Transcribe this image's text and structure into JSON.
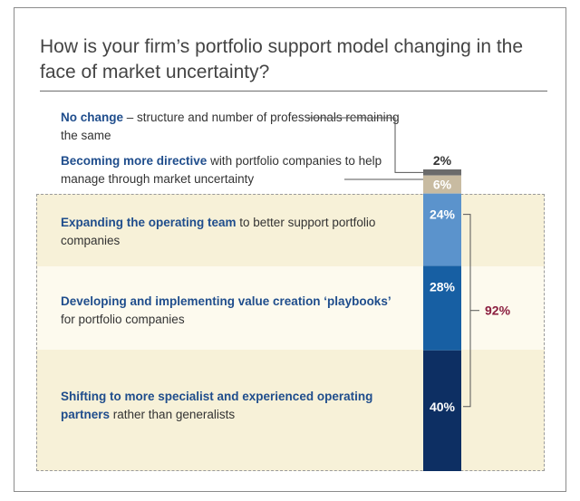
{
  "title": "How is your firm’s portfolio support model changing in the face of market uncertainty?",
  "chart_data": {
    "type": "bar",
    "subtype": "stacked-100",
    "categories": [
      "No change – structure and number of professionals remaining the same",
      "Becoming more directive with portfolio companies to help manage through market uncertainty",
      "Expanding the operating team to better support portfolio companies",
      "Developing and implementing value creation ‘playbooks’ for portfolio companies",
      "Shifting to more specialist and experienced operating partners rather than generalists"
    ],
    "values": [
      2,
      6,
      24,
      28,
      40
    ],
    "value_labels": [
      "2%",
      "6%",
      "24%",
      "28%",
      "40%"
    ],
    "colors": [
      "#6b6b6b",
      "#c8bba1",
      "#5b93cc",
      "#175fa3",
      "#0d2f63"
    ],
    "bracket_label": "92%",
    "bracket_color": "#8b1e3f"
  },
  "labels": [
    {
      "strong": "No change",
      "rest": " – structure and number of professionals remaining the same"
    },
    {
      "strong": "Becoming more directive",
      "rest": " with portfolio companies to help manage through market uncertainty"
    },
    {
      "strong": "Expanding the operating team",
      "rest": " to better support portfolio companies"
    },
    {
      "strong": "Developing and implementing value creation ‘playbooks’",
      "rest": " for portfolio companies"
    },
    {
      "strong": "Shifting to more specialist and experienced operating partners",
      "rest": " rather than generalists"
    }
  ]
}
